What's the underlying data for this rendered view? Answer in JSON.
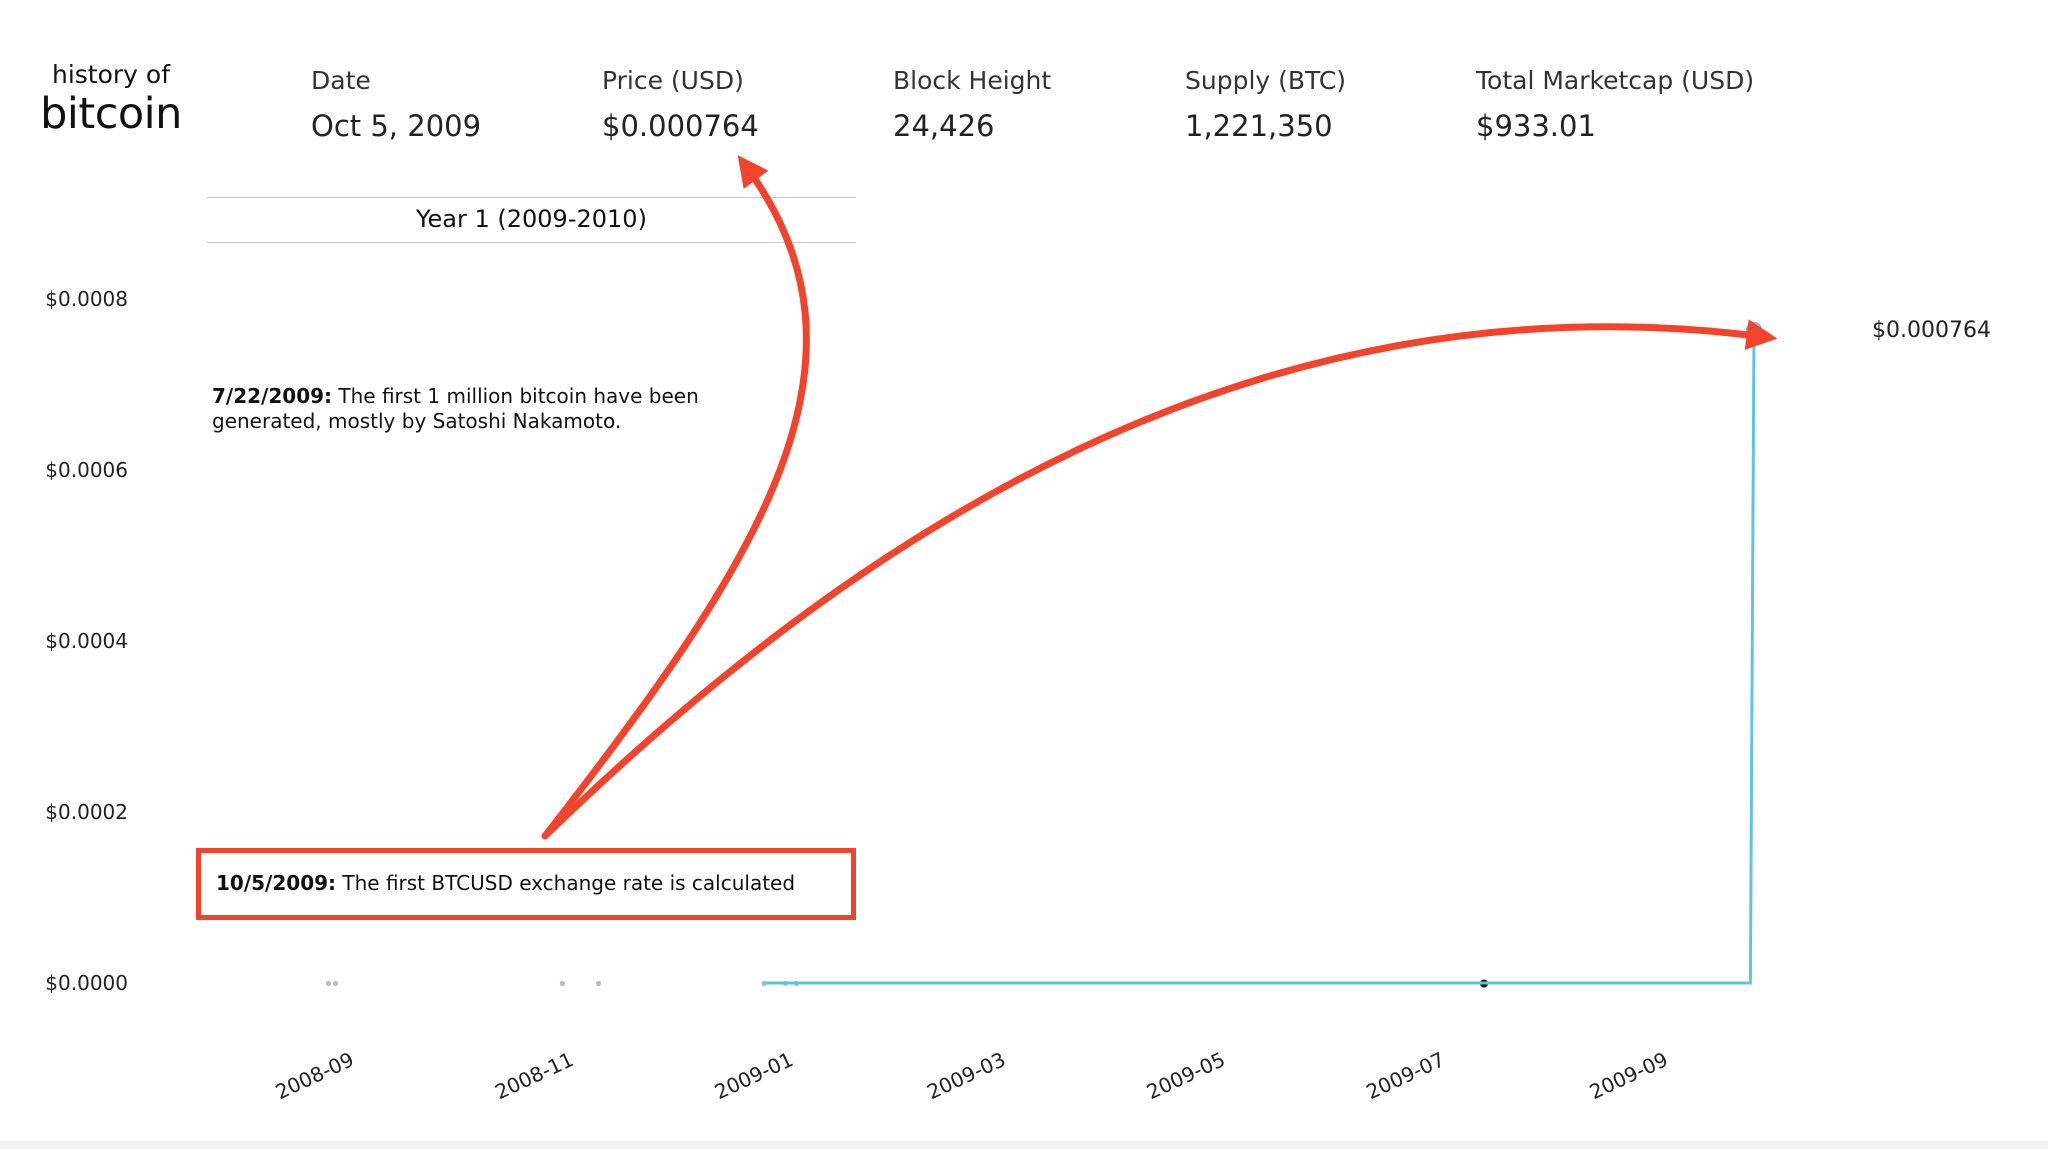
{
  "logo": {
    "line1": "history of",
    "line2": "bitcoin"
  },
  "stats": [
    {
      "label": "Date",
      "value": "Oct 5, 2009"
    },
    {
      "label": "Price (USD)",
      "value": "$0.000764"
    },
    {
      "label": "Block Height",
      "value": "24,426"
    },
    {
      "label": "Supply (BTC)",
      "value": "1,221,350"
    },
    {
      "label": "Total Marketcap (USD)",
      "value": "$933.01"
    }
  ],
  "era_label": "Year 1 (2009-2010)",
  "annotations": [
    {
      "date": "7/22/2009:",
      "text": "The first 1 million bitcoin have been",
      "text2": "generated, mostly by Satoshi Nakamoto."
    },
    {
      "date": "10/5/2009:",
      "text": "The first BTCUSD exchange rate is calculated"
    }
  ],
  "colors": {
    "line": "#5bc6dd",
    "arrow": "#f2442d",
    "text": "#222222"
  },
  "chart_data": {
    "type": "line",
    "title": "",
    "xlabel": "",
    "ylabel": "",
    "xlim": [
      "2008-08-01",
      "2009-10-20"
    ],
    "ylim": [
      0,
      0.0008
    ],
    "x_ticks": [
      "2008-09",
      "2008-11",
      "2009-01",
      "2009-03",
      "2009-05",
      "2009-07",
      "2009-09"
    ],
    "y_ticks": [
      {
        "value": 0.0,
        "label": "$0.0000"
      },
      {
        "value": 0.0002,
        "label": "$0.0002"
      },
      {
        "value": 0.0004,
        "label": "$0.0004"
      },
      {
        "value": 0.0006,
        "label": "$0.0006"
      },
      {
        "value": 0.0008,
        "label": "$0.0008"
      }
    ],
    "series": [
      {
        "points": [
          {
            "x": "2009-01-03",
            "y": 0
          },
          {
            "x": "2009-10-04",
            "y": 0
          },
          {
            "x": "2009-10-05",
            "y": 0.000764
          }
        ]
      }
    ],
    "event_markers": [
      {
        "x": "2008-09-04",
        "y": 0
      },
      {
        "x": "2008-09-06",
        "y": 0
      },
      {
        "x": "2008-11-08",
        "y": 0
      },
      {
        "x": "2008-11-18",
        "y": 0
      },
      {
        "x": "2009-01-03",
        "y": 0
      },
      {
        "x": "2009-01-09",
        "y": 0
      },
      {
        "x": "2009-01-12",
        "y": 0
      },
      {
        "x": "2009-07-22",
        "y": 0
      }
    ],
    "end_label": "$0.000764"
  }
}
